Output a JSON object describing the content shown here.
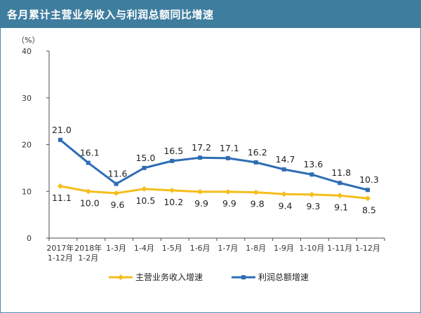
{
  "header": {
    "title": "各月累计主营业务收入与利润总额同比增速"
  },
  "colors": {
    "header_bg": "#3f7d9e",
    "revenue": "#f5be1b",
    "profit": "#2e6db4",
    "axis": "#4d4d4d"
  },
  "chart_data": {
    "type": "line",
    "title": "",
    "ylabel": "（%）",
    "xlabel": "",
    "ylim": [
      0,
      40
    ],
    "yticks": [
      0,
      10,
      20,
      30,
      40
    ],
    "grid": false,
    "legend_position": "bottom",
    "categories": [
      [
        "2017年",
        "1-12月"
      ],
      [
        "2018年",
        "1-2月"
      ],
      [
        "1-3月"
      ],
      [
        "1-4月"
      ],
      [
        "1-5月"
      ],
      [
        "1-6月"
      ],
      [
        "1-7月"
      ],
      [
        "1-8月"
      ],
      [
        "1-9月"
      ],
      [
        "1-10月"
      ],
      [
        "1-11月"
      ],
      [
        "1-12月"
      ]
    ],
    "series": [
      {
        "name": "主营业务收入增速",
        "color": "#f5be1b",
        "marker": "diamond",
        "label_position": "below",
        "values": [
          11.1,
          10.0,
          9.6,
          10.5,
          10.2,
          9.9,
          9.9,
          9.8,
          9.4,
          9.3,
          9.1,
          8.5
        ],
        "labels": [
          "11.1",
          "10.0",
          "9.6",
          "10.5",
          "10.2",
          "9.9",
          "9.9",
          "9.8",
          "9.4",
          "9.3",
          "9.1",
          "8.5"
        ]
      },
      {
        "name": "利润总额增速",
        "color": "#2e6db4",
        "marker": "square",
        "label_position": "above",
        "values": [
          21.0,
          16.1,
          11.6,
          15.0,
          16.5,
          17.2,
          17.1,
          16.2,
          14.7,
          13.6,
          11.8,
          10.3
        ],
        "labels": [
          "21.0",
          "16.1",
          "11.6",
          "15.0",
          "16.5",
          "17.2",
          "17.1",
          "16.2",
          "14.7",
          "13.6",
          "11.8",
          "10.3"
        ]
      }
    ]
  }
}
